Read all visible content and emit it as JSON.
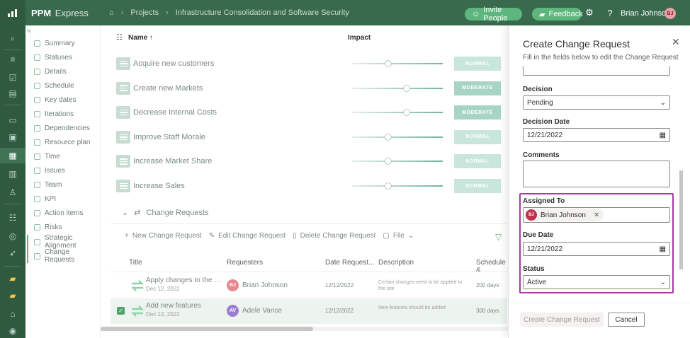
{
  "topbar": {
    "app_name_bold": "PPM",
    "app_name_light": "Express",
    "breadcrumb": [
      "Projects",
      "Infrastructure Consolidation and Software Security"
    ],
    "invite_label": "Invite People",
    "feedback_label": "Feedback",
    "user_name": "Brian Johnson",
    "user_initials": "BJ"
  },
  "nav": {
    "items": [
      "Summary",
      "Statuses",
      "Details",
      "Schedule",
      "Key dates",
      "Iterations",
      "Dependencies",
      "Resource plan",
      "Time",
      "Issues",
      "Team",
      "KPI",
      "Action items",
      "Risks",
      "Strategic Alignment",
      "Change Requests"
    ]
  },
  "objectives": {
    "name_header": "Name",
    "impact_header": "Impact",
    "rows": [
      {
        "name": "Acquire new customers",
        "impact": "NORMAL",
        "level": 0.4
      },
      {
        "name": "Create new Markets",
        "impact": "MODERATE",
        "level": 0.6
      },
      {
        "name": "Decrease Internal Costs",
        "impact": "MODERATE",
        "level": 0.6
      },
      {
        "name": "Improve Staff Morale",
        "impact": "NORMAL",
        "level": 0.4
      },
      {
        "name": "Increase Market Share",
        "impact": "NORMAL",
        "level": 0.4
      },
      {
        "name": "Increase Sales",
        "impact": "NORMAL",
        "level": 0.4
      }
    ],
    "colors": {
      "normal": "#c9e6dc",
      "moderate": "#a7d5c5"
    }
  },
  "change_requests": {
    "section_title": "Change Requests",
    "commands": {
      "new": "New Change Request",
      "edit": "Edit Change Request",
      "delete": "Delete Change Request",
      "file": "File"
    },
    "columns": {
      "title": "Title",
      "requesters": "Requesters",
      "date": "Date Request...",
      "description": "Description",
      "schedule": "Schedule &"
    },
    "rows": [
      {
        "title": "Apply changes to the we...",
        "date": "Dec 12, 2022",
        "initials": "BJ",
        "requester": "Brian Johnson",
        "requested": "12/12/2022",
        "description": "Certain changes need to be applied to the site",
        "schedule": "200 days",
        "avatar_color": "#e8868f",
        "selected": false
      },
      {
        "title": "Add new features",
        "date": "Dec 12, 2022",
        "initials": "AV",
        "requester": "Adele Vance",
        "requested": "12/12/2022",
        "description": "New features should be added",
        "schedule": "300 days",
        "avatar_color": "#9b7ed3",
        "selected": true
      }
    ]
  },
  "panel": {
    "title": "Create Change Request",
    "subtitle": "Fill in the fields below to edit the Change Request",
    "decision_label": "Decision",
    "decision_value": "Pending",
    "decision_date_label": "Decision Date",
    "decision_date_value": "12/21/2022",
    "comments_label": "Comments",
    "assigned_label": "Assigned To",
    "assigned_initials": "BJ",
    "assigned_name": "Brian Johnson",
    "due_label": "Due Date",
    "due_value": "12/21/2022",
    "status_label": "Status",
    "status_value": "Active",
    "create_label": "Create Change Request",
    "cancel_label": "Cancel"
  }
}
